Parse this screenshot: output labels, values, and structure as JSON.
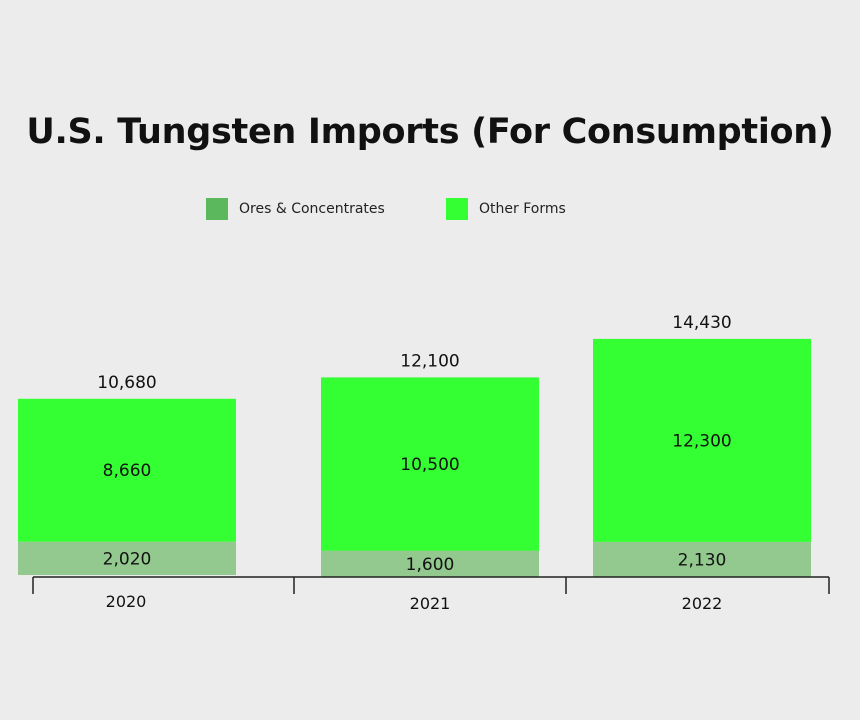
{
  "chart_data": {
    "type": "bar",
    "stacked": true,
    "title": "U.S. Tungsten Imports (For Consumption)",
    "categories": [
      "2020",
      "2021",
      "2022"
    ],
    "series": [
      {
        "name": "Ores & Concentrates",
        "values": [
          2020,
          1600,
          2130
        ],
        "value_labels": [
          "2,020",
          "1,600",
          "2,130"
        ],
        "color": "#93c98f"
      },
      {
        "name": "Other Forms",
        "values": [
          8660,
          10500,
          12300
        ],
        "value_labels": [
          "8,660",
          "10,500",
          "12,300"
        ],
        "color": "#33ff33"
      }
    ],
    "totals": [
      10680,
      12100,
      14430
    ],
    "total_labels": [
      "10,680",
      "12,100",
      "14,430"
    ],
    "legend_colors": [
      "#5cb85c",
      "#33ff33"
    ],
    "legend_position": "top-center",
    "grid": false,
    "ylim": [
      0,
      15000
    ]
  }
}
